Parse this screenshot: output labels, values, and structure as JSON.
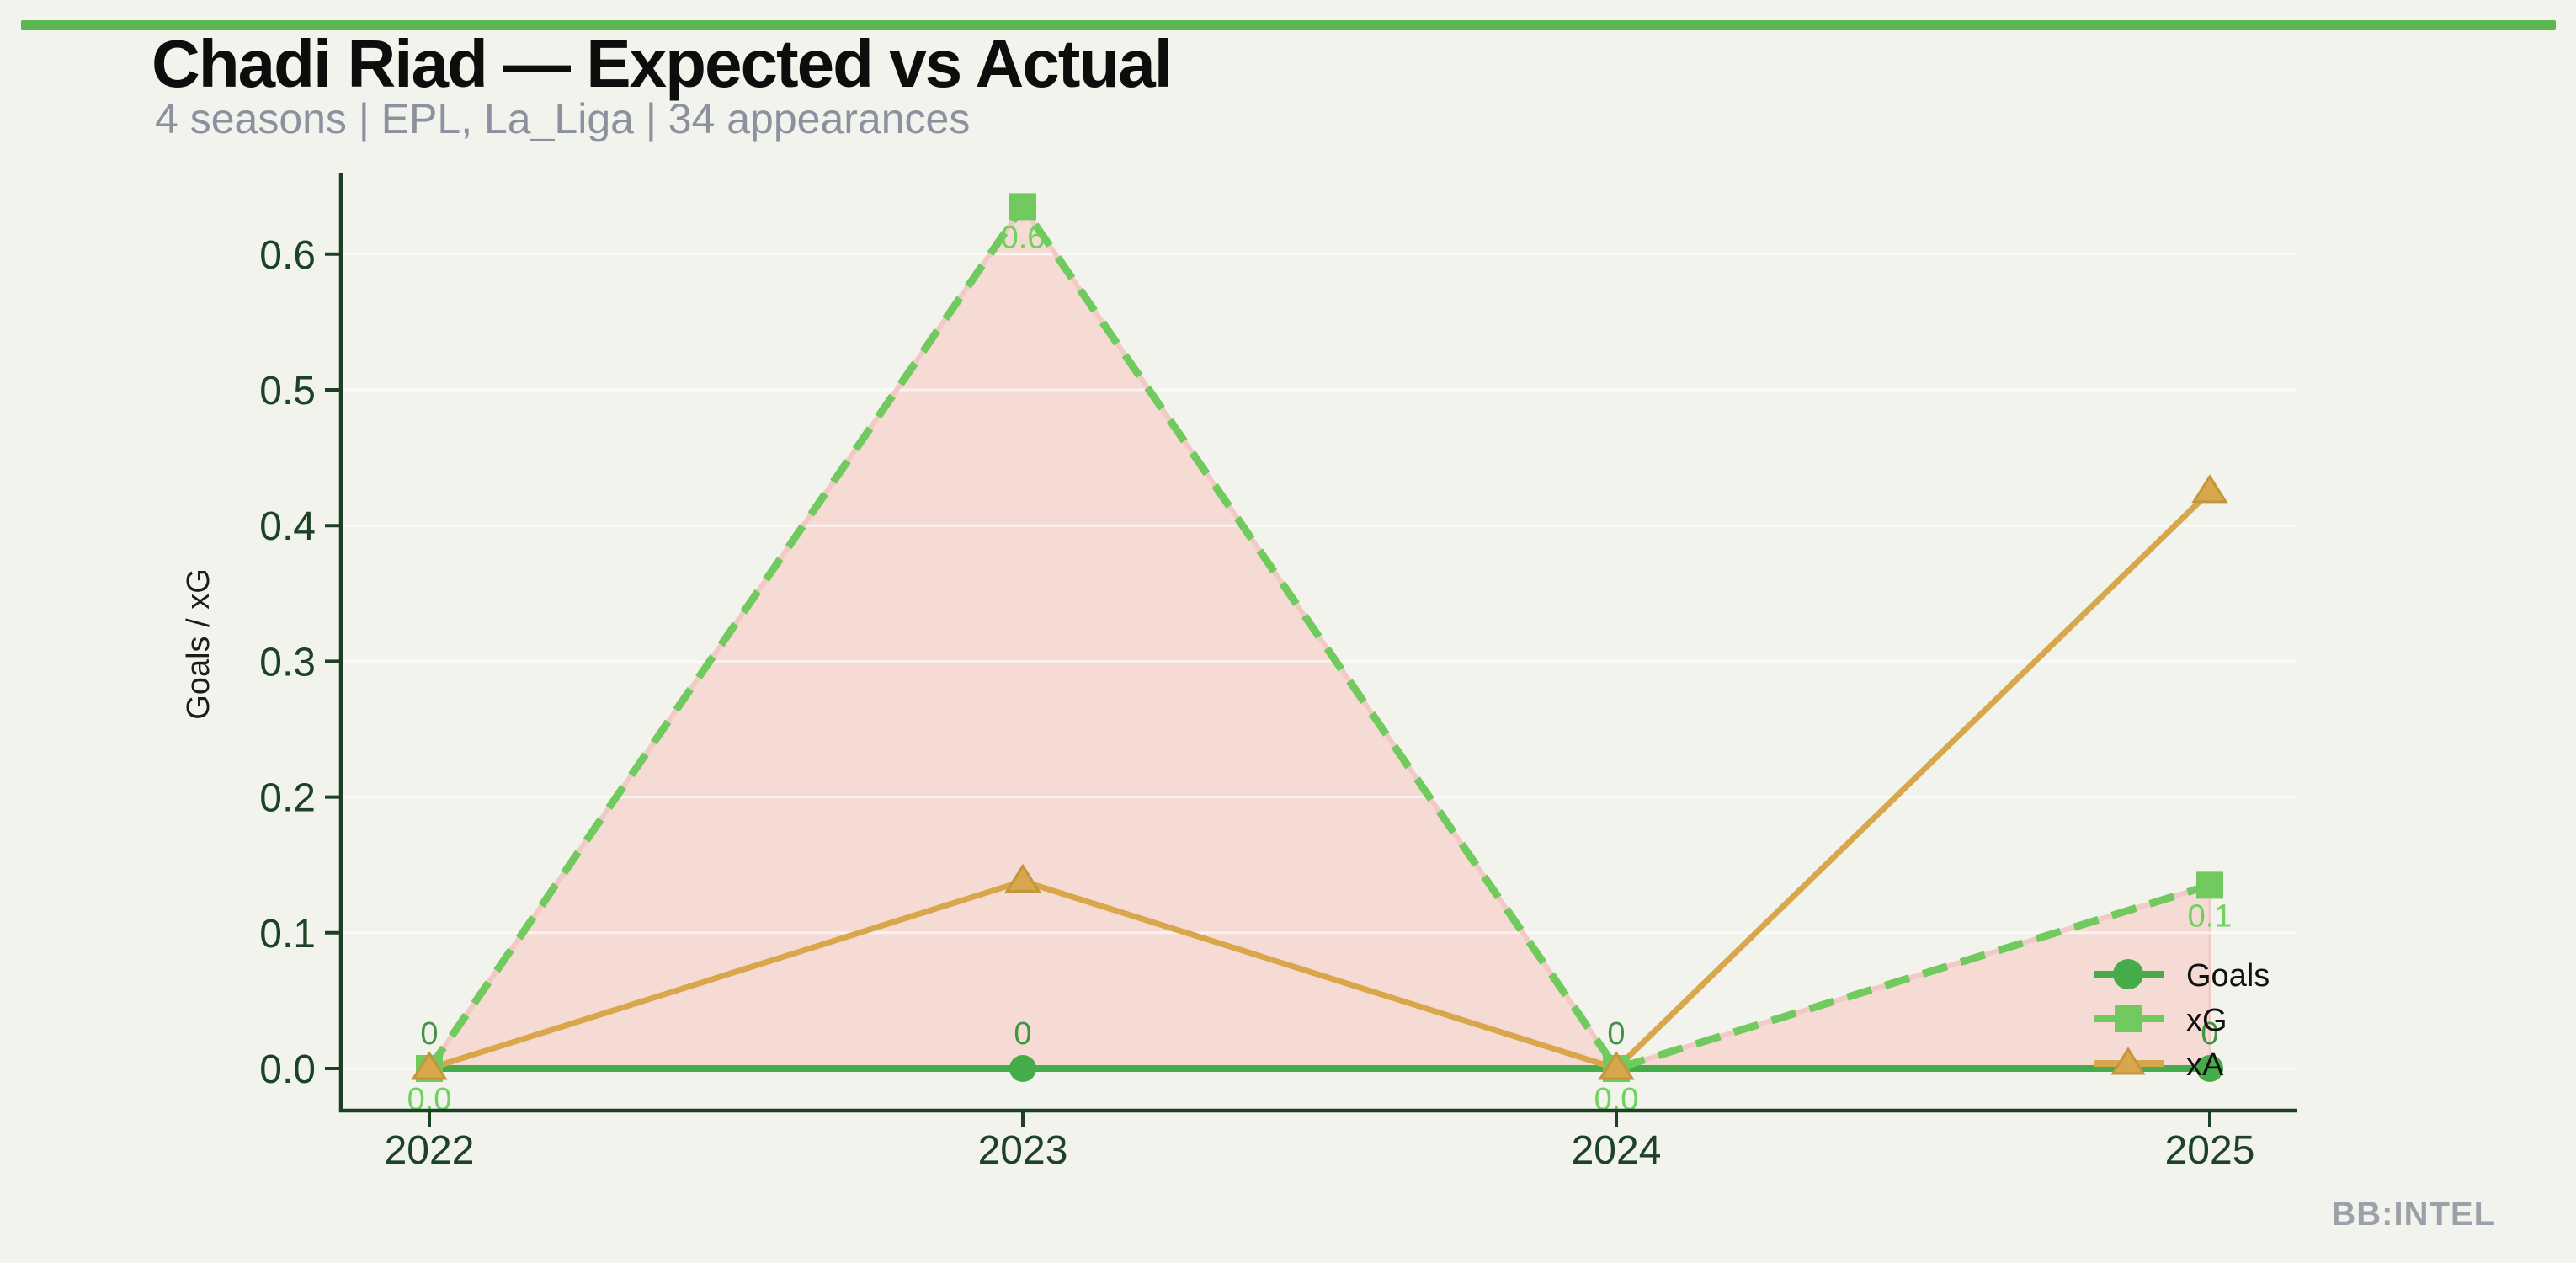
{
  "header": {
    "title": "Chadi Riad — Expected vs Actual",
    "subtitle": "4 seasons | EPL, La_Liga | 34 appearances"
  },
  "watermark": "BB:INTEL",
  "colors": {
    "background": "#f2f3ec",
    "top_bar": "#5cb751",
    "title": "#0d0d0d",
    "subtitle": "#8b919e",
    "watermark": "#9ba1a8",
    "axis": "#1d4023",
    "tick_label": "#1d4226",
    "grid_line": "rgba(255,255,255,0.6)",
    "legend_text": "#111111"
  },
  "chart_data": {
    "type": "line",
    "title": "Chadi Riad — Expected vs Actual",
    "xlabel": "",
    "ylabel": "Goals / xG",
    "x": [
      "2022",
      "2023",
      "2024",
      "2025"
    ],
    "ylim": [
      0,
      0.66
    ],
    "yticks": [
      0.0,
      0.1,
      0.2,
      0.3,
      0.4,
      0.5,
      0.6
    ],
    "ytick_labels": [
      "0.0",
      "0.1",
      "0.2",
      "0.3",
      "0.4",
      "0.5",
      "0.6"
    ],
    "grid": "horizontal faint white lines at each 0.1",
    "legend_position": "inside lower right",
    "series": [
      {
        "name": "Goals",
        "values": [
          0,
          0,
          0,
          0
        ],
        "color": "#46ac49",
        "marker": "circle",
        "line_style": "solid",
        "data_labels": [
          "0",
          "0",
          "0",
          "0"
        ],
        "data_label_color": "#449244",
        "data_label_position": "above"
      },
      {
        "name": "xG",
        "values": [
          0,
          0.635,
          0,
          0.135
        ],
        "color": "#70ca5e",
        "marker": "square",
        "line_style": "dashed",
        "underlay_color": "#f2cac5",
        "fill_to_zero_color": "#f6dbd5",
        "data_labels": [
          "0.0",
          "0.6",
          "0.0",
          "0.1"
        ],
        "data_label_color": "#70d25e",
        "data_label_position": "below"
      },
      {
        "name": "xA",
        "values": [
          0,
          0.138,
          0,
          0.425
        ],
        "color": "#d8a74c",
        "marker": "triangle",
        "marker_stroke": "#c4953c",
        "line_style": "solid"
      }
    ]
  },
  "legend": {
    "items": [
      {
        "label": "Goals"
      },
      {
        "label": "xG"
      },
      {
        "label": "xA"
      }
    ]
  }
}
